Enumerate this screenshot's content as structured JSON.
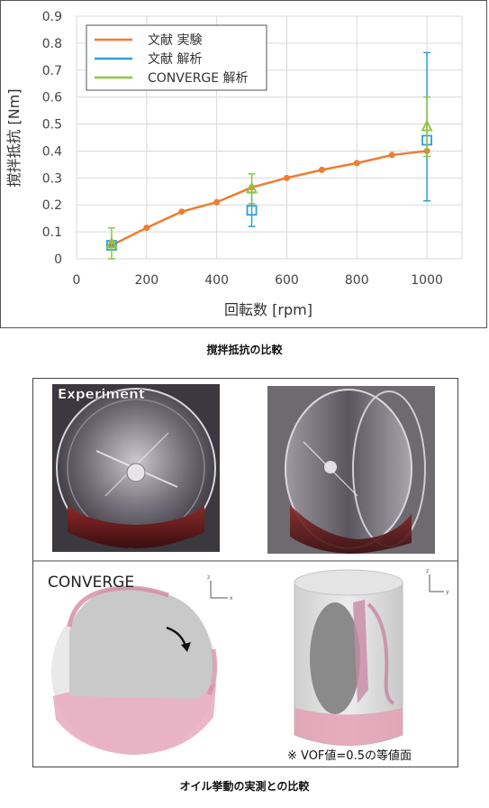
{
  "figure1": {
    "caption": "撹拌抵抗の比較",
    "chart_data": {
      "type": "line",
      "xlabel": "回転数 [rpm]",
      "ylabel": "撹拌抵抗 [Nm]",
      "xlim": [
        0,
        1100
      ],
      "ylim": [
        0,
        0.9
      ],
      "xticks": [
        "0",
        "200",
        "400",
        "600",
        "800",
        "1000"
      ],
      "yticks": [
        "0",
        "0.1",
        "0.2",
        "0.3",
        "0.4",
        "0.5",
        "0.6",
        "0.7",
        "0.8",
        "0.9"
      ],
      "grid": true,
      "legend": "top-left",
      "series": [
        {
          "name": "文献 実験",
          "color": "#ED7D31",
          "marker": "circle",
          "line": true,
          "x": [
            100,
            200,
            300,
            400,
            500,
            600,
            700,
            800,
            900,
            1000
          ],
          "y": [
            0.05,
            0.115,
            0.175,
            0.21,
            0.265,
            0.3,
            0.33,
            0.355,
            0.385,
            0.4
          ]
        },
        {
          "name": "文献 解析",
          "color": "#2E9FD9",
          "marker": "square",
          "line": false,
          "x": [
            100,
            500,
            1000
          ],
          "y": [
            0.05,
            0.18,
            0.44
          ],
          "err_low": [
            0.05,
            0.12,
            0.215
          ],
          "err_high": [
            0.05,
            0.245,
            0.765
          ]
        },
        {
          "name": "CONVERGE 解析",
          "color": "#8CC63F",
          "marker": "triangle",
          "line": false,
          "x": [
            100,
            500,
            1000
          ],
          "y": [
            0.055,
            0.26,
            0.49
          ],
          "err_low": [
            0.0,
            0.205,
            0.38
          ],
          "err_high": [
            0.115,
            0.315,
            0.6
          ]
        }
      ]
    }
  },
  "figure2": {
    "caption": "オイル挙動の実測との比較",
    "experiment_label": "Experiment",
    "converge_label": "CONVERGE",
    "note": "※ VOF値=0.5の等値面",
    "axis_z": "z",
    "axis_x": "x",
    "axis_y": "y"
  }
}
